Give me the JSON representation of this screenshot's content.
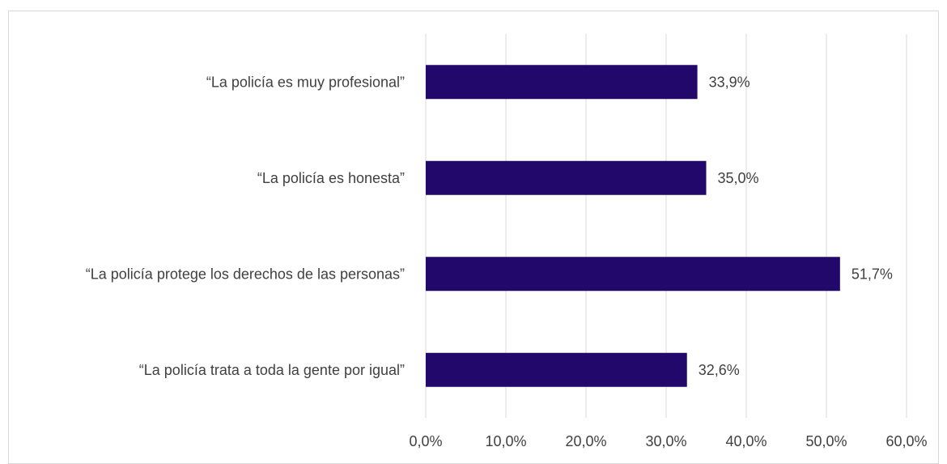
{
  "chart_data": {
    "type": "bar",
    "orientation": "horizontal",
    "categories": [
      "“La policía es muy profesional”",
      "“La policía es honesta”",
      "“La policía protege los derechos de las personas”",
      "“La policía trata a toda la gente por igual”"
    ],
    "values": [
      33.9,
      35.0,
      51.7,
      32.6
    ],
    "data_labels": [
      "33,9%",
      "35,0%",
      "51,7%",
      "32,6%"
    ],
    "x_ticks": [
      "0,0%",
      "10,0%",
      "20,0%",
      "30,0%",
      "40,0%",
      "50,0%",
      "60,0%"
    ],
    "xlim": [
      0,
      60
    ],
    "grid": "vertical",
    "legend": "none",
    "bar_color": "#22086b",
    "grid_color": "#d9d9d9",
    "text_color": "#404040"
  }
}
